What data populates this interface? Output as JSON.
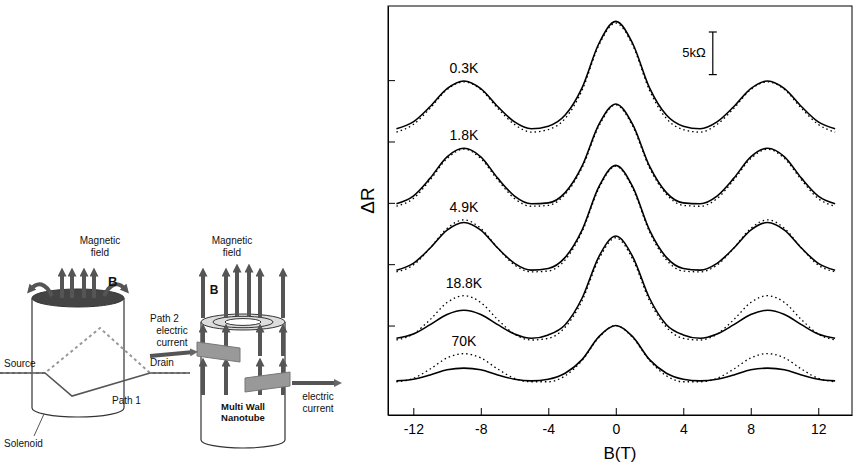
{
  "diagrams": [
    {
      "labels": [
        {
          "lines": [
            "Magnetic",
            "field"
          ]
        },
        {
          "lines": [
            "B"
          ]
        },
        {
          "lines": [
            "Path 2"
          ]
        },
        {
          "lines": [
            "Source"
          ]
        },
        {
          "lines": [
            "Drain"
          ]
        },
        {
          "lines": [
            "Path 1"
          ]
        },
        {
          "lines": [
            "Solenoid"
          ]
        }
      ]
    },
    {
      "labels": [
        {
          "lines": [
            "Magnetic",
            "field"
          ]
        },
        {
          "lines": [
            "B"
          ]
        },
        {
          "lines": [
            "electric",
            "current"
          ]
        },
        {
          "lines": [
            "electric",
            "current"
          ]
        },
        {
          "lines": [
            "Multi Wall",
            "Nanotube"
          ]
        }
      ]
    }
  ],
  "chart_data": {
    "type": "line",
    "xlabel": "B(T)",
    "ylabel": "ΔR",
    "tick_labels": "x",
    "grid": false,
    "xlim": [
      -13.5,
      14
    ],
    "xticks": [
      -12,
      -8,
      -4,
      0,
      4,
      8,
      12
    ],
    "ylim": [
      0,
      48
    ],
    "yticks": [
      10.5,
      17.7,
      24.9,
      32.1,
      39.3
    ],
    "scale_bar": {
      "value": 5,
      "label": "5kΩ"
    },
    "x": [
      -13,
      -12,
      -11,
      -10,
      -9,
      -8,
      -7,
      -6,
      -5,
      -4,
      -3,
      -2,
      -1,
      0,
      1,
      2,
      3,
      4,
      5,
      6,
      7,
      8,
      9,
      10,
      11,
      12,
      13
    ],
    "series": [
      {
        "name": "0.3K",
        "color": "#000000",
        "line_style": "solid",
        "values": [
          33.6,
          34.4,
          36.2,
          38.3,
          39.2,
          38.3,
          36.2,
          34.4,
          33.6,
          33.9,
          35.2,
          38.4,
          43.6,
          46.2,
          43.6,
          38.4,
          35.2,
          33.9,
          33.6,
          34.4,
          36.2,
          38.3,
          39.2,
          38.3,
          36.2,
          34.4,
          33.6
        ]
      },
      {
        "color": "#000000",
        "line_style": "dotted",
        "values": [
          33.2,
          34.1,
          36.0,
          38.2,
          39.1,
          38.2,
          36.0,
          34.1,
          33.2,
          33.5,
          34.8,
          38.1,
          43.4,
          46.0,
          43.4,
          38.1,
          34.8,
          33.5,
          33.2,
          34.1,
          36.0,
          38.2,
          39.1,
          38.2,
          36.0,
          34.1,
          33.2
        ]
      },
      {
        "name": "1.8K",
        "color": "#000000",
        "line_style": "solid",
        "values": [
          24.8,
          25.7,
          27.8,
          30.3,
          31.3,
          30.3,
          27.8,
          25.7,
          24.8,
          24.9,
          26.1,
          29.2,
          34.1,
          36.5,
          34.1,
          29.2,
          26.1,
          24.9,
          24.8,
          25.7,
          27.8,
          30.3,
          31.3,
          30.3,
          27.8,
          25.7,
          24.8
        ]
      },
      {
        "color": "#000000",
        "line_style": "dotted",
        "values": [
          24.5,
          25.4,
          27.6,
          30.1,
          31.2,
          30.1,
          27.6,
          25.4,
          24.5,
          24.6,
          25.9,
          29.0,
          33.9,
          36.4,
          33.9,
          29.0,
          25.9,
          24.6,
          24.5,
          25.4,
          27.6,
          30.1,
          31.2,
          30.1,
          27.6,
          25.4,
          24.5
        ]
      },
      {
        "name": "4.9K",
        "color": "#000000",
        "line_style": "solid",
        "values": [
          17.0,
          17.8,
          19.6,
          21.7,
          22.6,
          21.7,
          19.6,
          17.8,
          17.0,
          17.2,
          18.5,
          21.7,
          26.8,
          29.3,
          26.8,
          21.7,
          18.5,
          17.2,
          17.0,
          17.8,
          19.6,
          21.7,
          22.6,
          21.7,
          19.6,
          17.8,
          17.0
        ]
      },
      {
        "color": "#000000",
        "line_style": "dotted",
        "values": [
          16.8,
          17.6,
          19.6,
          21.9,
          22.9,
          21.9,
          19.6,
          17.6,
          16.8,
          16.9,
          18.2,
          21.5,
          26.6,
          29.2,
          26.6,
          21.5,
          18.2,
          16.9,
          16.8,
          17.6,
          19.6,
          21.9,
          22.9,
          21.9,
          19.6,
          17.6,
          16.8
        ]
      },
      {
        "name": "18.8K",
        "color": "#000000",
        "line_style": "solid",
        "values": [
          9.0,
          9.5,
          10.6,
          11.8,
          12.3,
          11.8,
          10.6,
          9.5,
          9.0,
          9.4,
          10.6,
          13.7,
          18.6,
          21.0,
          18.6,
          13.7,
          10.6,
          9.4,
          9.0,
          9.5,
          10.6,
          11.8,
          12.3,
          11.8,
          10.6,
          9.5,
          9.0
        ]
      },
      {
        "color": "#000000",
        "line_style": "dotted",
        "values": [
          8.8,
          9.5,
          11.2,
          13.2,
          14.0,
          13.2,
          11.2,
          9.5,
          8.8,
          9.0,
          10.3,
          13.4,
          18.3,
          20.8,
          18.3,
          13.4,
          10.3,
          9.0,
          8.8,
          9.5,
          11.2,
          13.2,
          14.0,
          13.2,
          11.2,
          9.5,
          8.8
        ]
      },
      {
        "name": "70K",
        "color": "#000000",
        "line_style": "solid",
        "values": [
          4.0,
          4.2,
          4.7,
          5.3,
          5.5,
          5.3,
          4.7,
          4.2,
          4.0,
          4.2,
          4.9,
          6.5,
          9.2,
          10.5,
          9.2,
          6.5,
          4.9,
          4.2,
          4.0,
          4.2,
          4.7,
          5.3,
          5.5,
          5.3,
          4.7,
          4.2,
          4.0
        ]
      },
      {
        "color": "#000000",
        "line_style": "dotted",
        "values": [
          3.9,
          4.3,
          5.4,
          6.7,
          7.2,
          6.7,
          5.4,
          4.3,
          3.9,
          3.9,
          4.6,
          6.4,
          9.1,
          10.5,
          9.1,
          6.4,
          4.6,
          3.9,
          3.9,
          4.3,
          5.4,
          6.7,
          7.2,
          6.7,
          5.4,
          4.3,
          3.9
        ]
      }
    ]
  }
}
